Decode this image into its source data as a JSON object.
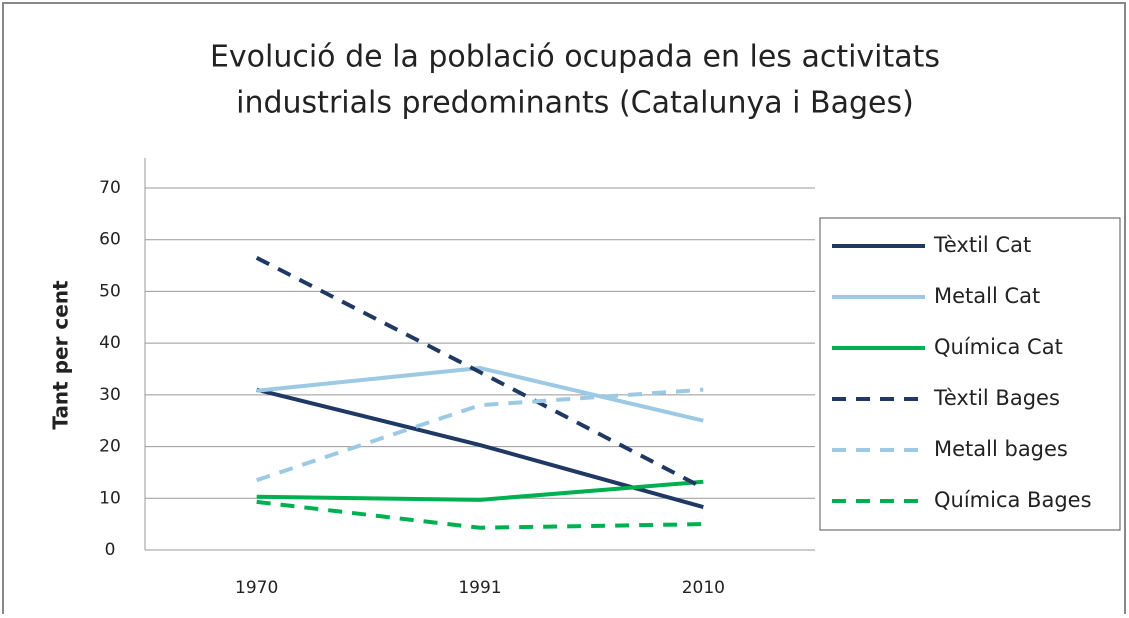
{
  "chart_data": {
    "type": "line",
    "title": [
      "Evolució de la població ocupada en les activitats",
      "industrials predominants (Catalunya i Bages)"
    ],
    "y_label": "Tant per cent",
    "categories": [
      "1970",
      "1991",
      "2010"
    ],
    "series": [
      {
        "name": "Tèxtil Cat",
        "color": "#1f3864",
        "dashed": false,
        "values": [
          31,
          20.3,
          8.3
        ]
      },
      {
        "name": "Metall Cat",
        "color": "#9cc9e3",
        "dashed": false,
        "values": [
          30.8,
          35.2,
          25
        ]
      },
      {
        "name": "Química Cat",
        "color": "#00b050",
        "dashed": false,
        "values": [
          10.3,
          9.7,
          13.2
        ]
      },
      {
        "name": "Tèxtil Bages",
        "color": "#1f3864",
        "dashed": true,
        "values": [
          56.5,
          34.4,
          12
        ]
      },
      {
        "name": "Metall bages",
        "color": "#9cc9e3",
        "dashed": true,
        "values": [
          13.5,
          28,
          31
        ]
      },
      {
        "name": "Química Bages",
        "color": "#00b050",
        "dashed": true,
        "values": [
          9.3,
          4.3,
          5
        ]
      }
    ],
    "ylim": [
      0,
      70
    ],
    "yticks": [
      0,
      10,
      20,
      30,
      40,
      50,
      60,
      70
    ],
    "grid": true
  }
}
